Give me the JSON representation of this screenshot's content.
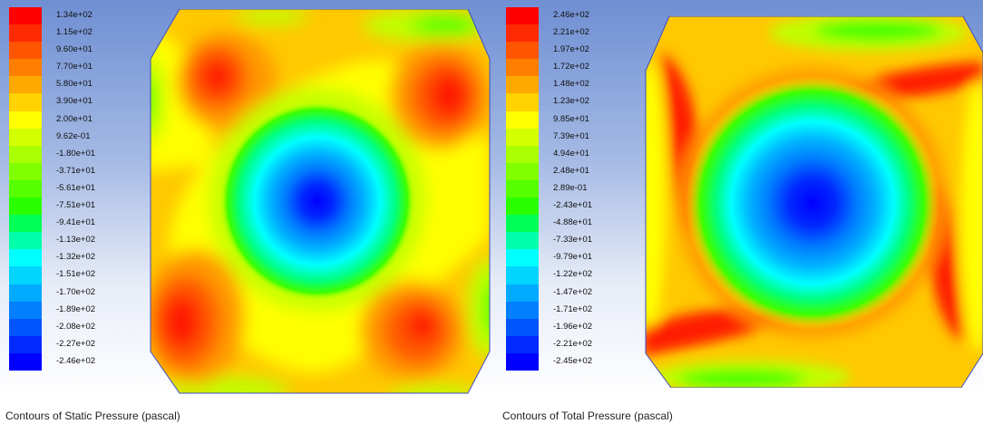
{
  "static_pressure": {
    "caption": "Contours of Static Pressure (pascal)",
    "levels": [
      {
        "label": "1.34e+02",
        "color": "#ff0000"
      },
      {
        "label": "1.15e+02",
        "color": "#ff2a00"
      },
      {
        "label": "9.60e+01",
        "color": "#ff5400"
      },
      {
        "label": "7.70e+01",
        "color": "#ff7e00"
      },
      {
        "label": "5.80e+01",
        "color": "#ffa800"
      },
      {
        "label": "3.90e+01",
        "color": "#ffd200"
      },
      {
        "label": "2.00e+01",
        "color": "#ffff00"
      },
      {
        "label": "9.62e-01",
        "color": "#d4ff00"
      },
      {
        "label": "-1.80e+01",
        "color": "#aaff00"
      },
      {
        "label": "-3.71e+01",
        "color": "#7fff00"
      },
      {
        "label": "-5.61e+01",
        "color": "#55ff00"
      },
      {
        "label": "-7.51e+01",
        "color": "#2aff00"
      },
      {
        "label": "-9.41e+01",
        "color": "#00ff55"
      },
      {
        "label": "-1.13e+02",
        "color": "#00ffaa"
      },
      {
        "label": "-1.32e+02",
        "color": "#00ffff"
      },
      {
        "label": "-1.51e+02",
        "color": "#00d4ff"
      },
      {
        "label": "-1.70e+02",
        "color": "#00aaff"
      },
      {
        "label": "-1.89e+02",
        "color": "#007fff"
      },
      {
        "label": "-2.08e+02",
        "color": "#0055ff"
      },
      {
        "label": "-2.27e+02",
        "color": "#002aff"
      },
      {
        "label": "-2.46e+02",
        "color": "#0000ff"
      }
    ]
  },
  "total_pressure": {
    "caption": "Contours of Total Pressure (pascal)",
    "levels": [
      {
        "label": "2.46e+02",
        "color": "#ff0000"
      },
      {
        "label": "2.21e+02",
        "color": "#ff2a00"
      },
      {
        "label": "1.97e+02",
        "color": "#ff5400"
      },
      {
        "label": "1.72e+02",
        "color": "#ff7e00"
      },
      {
        "label": "1.48e+02",
        "color": "#ffa800"
      },
      {
        "label": "1.23e+02",
        "color": "#ffd200"
      },
      {
        "label": "9.85e+01",
        "color": "#ffff00"
      },
      {
        "label": "7.39e+01",
        "color": "#d4ff00"
      },
      {
        "label": "4.94e+01",
        "color": "#aaff00"
      },
      {
        "label": "2.48e+01",
        "color": "#7fff00"
      },
      {
        "label": "2.89e-01",
        "color": "#55ff00"
      },
      {
        "label": "-2.43e+01",
        "color": "#2aff00"
      },
      {
        "label": "-4.88e+01",
        "color": "#00ff55"
      },
      {
        "label": "-7.33e+01",
        "color": "#00ffaa"
      },
      {
        "label": "-9.79e+01",
        "color": "#00ffff"
      },
      {
        "label": "-1.22e+02",
        "color": "#00d4ff"
      },
      {
        "label": "-1.47e+02",
        "color": "#00aaff"
      },
      {
        "label": "-1.71e+02",
        "color": "#007fff"
      },
      {
        "label": "-1.96e+02",
        "color": "#0055ff"
      },
      {
        "label": "-2.21e+02",
        "color": "#002aff"
      },
      {
        "label": "-2.45e+02",
        "color": "#0000ff"
      }
    ]
  },
  "palette": {
    "red": "#ff1a00",
    "orangered": "#ff5a00",
    "orange": "#ff9a00",
    "amber": "#ffc800",
    "yellow": "#ffff00",
    "lime": "#bfff00",
    "green": "#3cff00",
    "mint": "#00ff80",
    "cyan": "#00ffff",
    "sky": "#00b4ff",
    "azure": "#0078ff",
    "blue": "#0028ff",
    "deep": "#0000ff",
    "edge": "#3a4dc6"
  }
}
